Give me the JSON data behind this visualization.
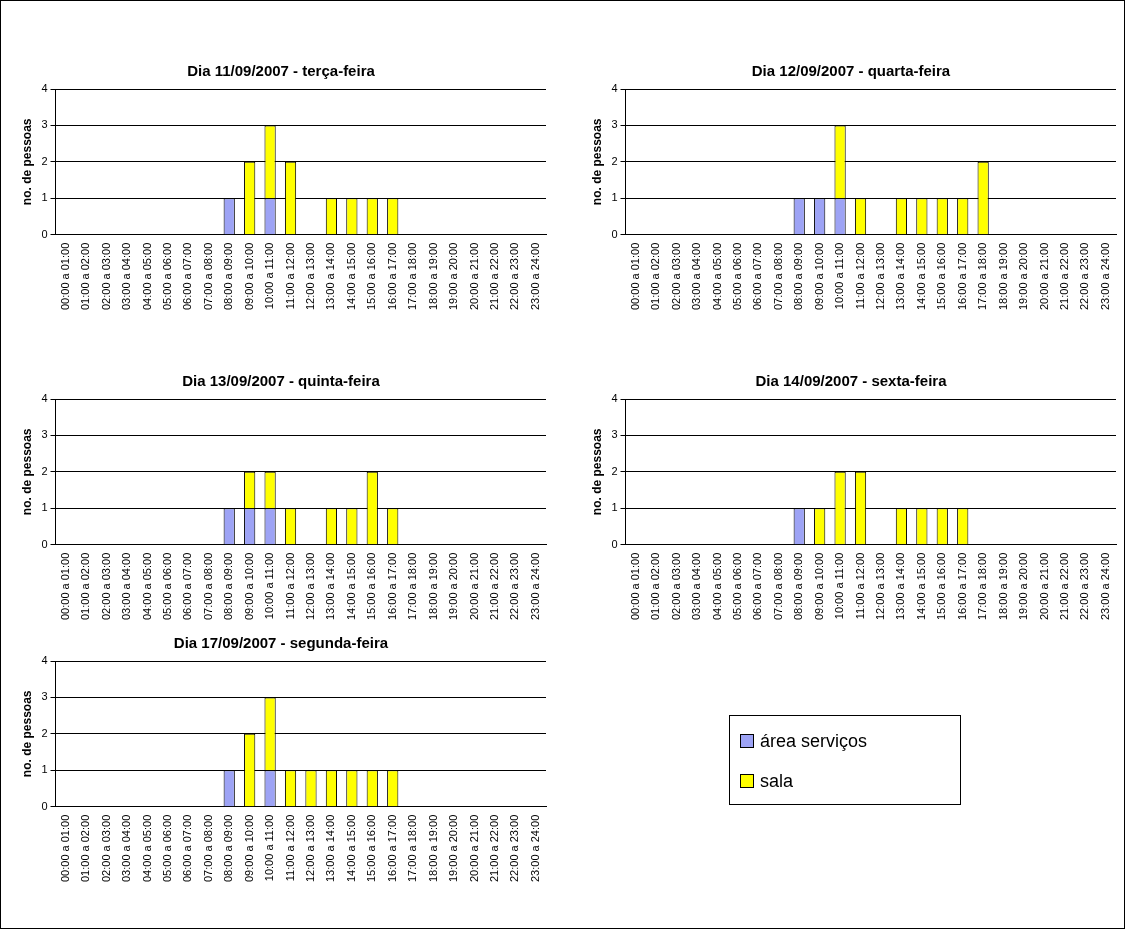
{
  "chart_data": [
    {
      "type": "bar",
      "title": "Dia 11/09/2007 - terça-feira",
      "ylabel": "no. de pessoas",
      "stacked": true,
      "ylim": [
        0,
        4
      ],
      "yticks": [
        0,
        1,
        2,
        3,
        4
      ],
      "grid": "y",
      "legend": "bottom right",
      "categories": [
        "00:00 a 01:00",
        "01:00 a 02:00",
        "02:00 a 03:00",
        "03:00 a 04:00",
        "04:00 a 05:00",
        "05:00 a 06:00",
        "06:00 a 07:00",
        "07:00 a 08:00",
        "08:00 a 09:00",
        "09:00 a 10:00",
        "10:00 a 11:00",
        "11:00 a 12:00",
        "12:00 a 13:00",
        "13:00 a 14:00",
        "14:00 a 15:00",
        "15:00 a 16:00",
        "16:00 a 17:00",
        "17:00 a 18:00",
        "18:00 a 19:00",
        "19:00 a 20:00",
        "20:00 a 21:00",
        "21:00 a 22:00",
        "22:00 a 23:00",
        "23:00 a 24:00"
      ],
      "series": [
        {
          "name": "área serviços",
          "color": "#9da3f5",
          "values": [
            0,
            0,
            0,
            0,
            0,
            0,
            0,
            0,
            1,
            0,
            1,
            0,
            0,
            0,
            0,
            0,
            0,
            0,
            0,
            0,
            0,
            0,
            0,
            0
          ]
        },
        {
          "name": "sala",
          "color": "#ffff00",
          "values": [
            0,
            0,
            0,
            0,
            0,
            0,
            0,
            0,
            0,
            2,
            2,
            2,
            0,
            1,
            1,
            1,
            1,
            0,
            0,
            0,
            0,
            0,
            0,
            0
          ]
        }
      ]
    },
    {
      "type": "bar",
      "title": "Dia 12/09/2007 - quarta-feira",
      "ylabel": "no. de pessoas",
      "stacked": true,
      "ylim": [
        0,
        4
      ],
      "yticks": [
        0,
        1,
        2,
        3,
        4
      ],
      "grid": "y",
      "categories": [
        "00:00 a 01:00",
        "01:00 a 02:00",
        "02:00 a 03:00",
        "03:00 a 04:00",
        "04:00 a 05:00",
        "05:00 a 06:00",
        "06:00 a 07:00",
        "07:00 a 08:00",
        "08:00 a 09:00",
        "09:00 a 10:00",
        "10:00 a 11:00",
        "11:00 a 12:00",
        "12:00 a 13:00",
        "13:00 a 14:00",
        "14:00 a 15:00",
        "15:00 a 16:00",
        "16:00 a 17:00",
        "17:00 a 18:00",
        "18:00 a 19:00",
        "19:00 a 20:00",
        "20:00 a 21:00",
        "21:00 a 22:00",
        "22:00 a 23:00",
        "23:00 a 24:00"
      ],
      "series": [
        {
          "color": "#9da3f5",
          "values": [
            0,
            0,
            0,
            0,
            0,
            0,
            0,
            0,
            1,
            1,
            1,
            0,
            0,
            0,
            0,
            0,
            0,
            0,
            0,
            0,
            0,
            0,
            0,
            0
          ]
        },
        {
          "color": "#ffff00",
          "values": [
            0,
            0,
            0,
            0,
            0,
            0,
            0,
            0,
            0,
            0,
            2,
            1,
            0,
            1,
            1,
            1,
            1,
            2,
            0,
            0,
            0,
            0,
            0,
            0
          ]
        }
      ]
    },
    {
      "type": "bar",
      "title": "Dia 13/09/2007 - quinta-feira",
      "ylabel": "no. de pessoas",
      "stacked": true,
      "ylim": [
        0,
        4
      ],
      "yticks": [
        0,
        1,
        2,
        3,
        4
      ],
      "grid": "y",
      "categories": [
        "00:00 a 01:00",
        "01:00 a 02:00",
        "02:00 a 03:00",
        "03:00 a 04:00",
        "04:00 a 05:00",
        "05:00 a 06:00",
        "06:00 a 07:00",
        "07:00 a 08:00",
        "08:00 a 09:00",
        "09:00 a 10:00",
        "10:00 a 11:00",
        "11:00 a 12:00",
        "12:00 a 13:00",
        "13:00 a 14:00",
        "14:00 a 15:00",
        "15:00 a 16:00",
        "16:00 a 17:00",
        "17:00 a 18:00",
        "18:00 a 19:00",
        "19:00 a 20:00",
        "20:00 a 21:00",
        "21:00 a 22:00",
        "22:00 a 23:00",
        "23:00 a 24:00"
      ],
      "series": [
        {
          "color": "#9da3f5",
          "values": [
            0,
            0,
            0,
            0,
            0,
            0,
            0,
            0,
            1,
            1,
            1,
            0,
            0,
            0,
            0,
            0,
            0,
            0,
            0,
            0,
            0,
            0,
            0,
            0
          ]
        },
        {
          "color": "#ffff00",
          "values": [
            0,
            0,
            0,
            0,
            0,
            0,
            0,
            0,
            0,
            1,
            1,
            1,
            0,
            1,
            1,
            2,
            1,
            0,
            0,
            0,
            0,
            0,
            0,
            0
          ]
        }
      ]
    },
    {
      "type": "bar",
      "title": "Dia 14/09/2007 - sexta-feira",
      "ylabel": "no. de pessoas",
      "stacked": true,
      "ylim": [
        0,
        4
      ],
      "yticks": [
        0,
        1,
        2,
        3,
        4
      ],
      "grid": "y",
      "categories": [
        "00:00 a 01:00",
        "01:00 a 02:00",
        "02:00 a 03:00",
        "03:00 a 04:00",
        "04:00 a 05:00",
        "05:00 a 06:00",
        "06:00 a 07:00",
        "07:00 a 08:00",
        "08:00 a 09:00",
        "09:00 a 10:00",
        "10:00 a 11:00",
        "11:00 a 12:00",
        "12:00 a 13:00",
        "13:00 a 14:00",
        "14:00 a 15:00",
        "15:00 a 16:00",
        "16:00 a 17:00",
        "17:00 a 18:00",
        "18:00 a 19:00",
        "19:00 a 20:00",
        "20:00 a 21:00",
        "21:00 a 22:00",
        "22:00 a 23:00",
        "23:00 a 24:00"
      ],
      "series": [
        {
          "color": "#9da3f5",
          "values": [
            0,
            0,
            0,
            0,
            0,
            0,
            0,
            0,
            1,
            0,
            0,
            0,
            0,
            0,
            0,
            0,
            0,
            0,
            0,
            0,
            0,
            0,
            0,
            0
          ]
        },
        {
          "color": "#ffff00",
          "values": [
            0,
            0,
            0,
            0,
            0,
            0,
            0,
            0,
            0,
            1,
            2,
            2,
            0,
            1,
            1,
            1,
            1,
            0,
            0,
            0,
            0,
            0,
            0,
            0
          ]
        }
      ]
    },
    {
      "type": "bar",
      "title": "Dia 17/09/2007 - segunda-feira",
      "ylabel": "no. de pessoas",
      "stacked": true,
      "ylim": [
        0,
        4
      ],
      "yticks": [
        0,
        1,
        2,
        3,
        4
      ],
      "grid": "y",
      "categories": [
        "00:00 a 01:00",
        "01:00 a 02:00",
        "02:00 a 03:00",
        "03:00 a 04:00",
        "04:00 a 05:00",
        "05:00 a 06:00",
        "06:00 a 07:00",
        "07:00 a 08:00",
        "08:00 a 09:00",
        "09:00 a 10:00",
        "10:00 a 11:00",
        "11:00 a 12:00",
        "12:00 a 13:00",
        "13:00 a 14:00",
        "14:00 a 15:00",
        "15:00 a 16:00",
        "16:00 a 17:00",
        "17:00 a 18:00",
        "18:00 a 19:00",
        "19:00 a 20:00",
        "20:00 a 21:00",
        "21:00 a 22:00",
        "22:00 a 23:00",
        "23:00 a 24:00"
      ],
      "series": [
        {
          "color": "#9da3f5",
          "values": [
            0,
            0,
            0,
            0,
            0,
            0,
            0,
            0,
            1,
            0,
            1,
            0,
            0,
            0,
            0,
            0,
            0,
            0,
            0,
            0,
            0,
            0,
            0,
            0
          ]
        },
        {
          "color": "#ffff00",
          "values": [
            0,
            0,
            0,
            0,
            0,
            0,
            0,
            0,
            0,
            2,
            2,
            1,
            1,
            1,
            1,
            1,
            1,
            0,
            0,
            0,
            0,
            0,
            0,
            0
          ]
        }
      ]
    }
  ]
}
